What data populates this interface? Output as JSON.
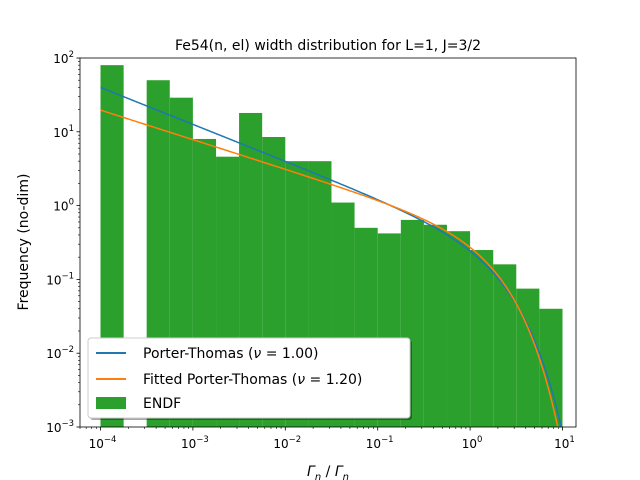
{
  "chart_data": {
    "type": "bar",
    "title": "Fe54(n, el) width distribution for L=1, J=3/2",
    "xlabel_base": "Γ",
    "xlabel_sub": "n",
    "xlabel_bar": "Γ",
    "xlabel_bar_sub": "n",
    "ylabel": "Frequency (no-dim)",
    "xscale": "log",
    "yscale": "log",
    "xlim": [
      6e-05,
      14
    ],
    "ylim": [
      0.001,
      100
    ],
    "x_ticks": [
      {
        "value": 0.0001,
        "base": "10",
        "exp": "−4"
      },
      {
        "value": 0.001,
        "base": "10",
        "exp": "−3"
      },
      {
        "value": 0.01,
        "base": "10",
        "exp": "−2"
      },
      {
        "value": 0.1,
        "base": "10",
        "exp": "−1"
      },
      {
        "value": 1,
        "base": "10",
        "exp": "0"
      },
      {
        "value": 10,
        "base": "10",
        "exp": "1"
      }
    ],
    "y_ticks": [
      {
        "value": 0.001,
        "base": "10",
        "exp": "−3"
      },
      {
        "value": 0.01,
        "base": "10",
        "exp": "−2"
      },
      {
        "value": 0.1,
        "base": "10",
        "exp": "−1"
      },
      {
        "value": 1,
        "base": "10",
        "exp": "0"
      },
      {
        "value": 10,
        "base": "10",
        "exp": "1"
      },
      {
        "value": 100,
        "base": "10",
        "exp": "2"
      }
    ],
    "histogram": {
      "name": "ENDF",
      "color": "#2ca02c",
      "bins": [
        {
          "x0": 0.0001,
          "x1": 0.000178,
          "value": 80
        },
        {
          "x0": 0.000178,
          "x1": 0.000316,
          "value": 0.001
        },
        {
          "x0": 0.000316,
          "x1": 0.000562,
          "value": 50
        },
        {
          "x0": 0.000562,
          "x1": 0.001,
          "value": 29
        },
        {
          "x0": 0.001,
          "x1": 0.00178,
          "value": 8
        },
        {
          "x0": 0.00178,
          "x1": 0.00316,
          "value": 4.6
        },
        {
          "x0": 0.00316,
          "x1": 0.00562,
          "value": 18
        },
        {
          "x0": 0.00562,
          "x1": 0.01,
          "value": 8.5
        },
        {
          "x0": 0.01,
          "x1": 0.0178,
          "value": 4
        },
        {
          "x0": 0.0178,
          "x1": 0.0316,
          "value": 4
        },
        {
          "x0": 0.0316,
          "x1": 0.0562,
          "value": 1.1
        },
        {
          "x0": 0.0562,
          "x1": 0.1,
          "value": 0.5
        },
        {
          "x0": 0.1,
          "x1": 0.178,
          "value": 0.42
        },
        {
          "x0": 0.178,
          "x1": 0.316,
          "value": 0.64
        },
        {
          "x0": 0.316,
          "x1": 0.562,
          "value": 0.55
        },
        {
          "x0": 0.562,
          "x1": 1,
          "value": 0.45
        },
        {
          "x0": 1,
          "x1": 1.78,
          "value": 0.25
        },
        {
          "x0": 1.78,
          "x1": 3.16,
          "value": 0.16
        },
        {
          "x0": 3.16,
          "x1": 5.62,
          "value": 0.075
        },
        {
          "x0": 5.62,
          "x1": 10,
          "value": 0.04
        }
      ]
    },
    "series": [
      {
        "name": "Porter-Thomas",
        "legend_prefix": "Porter-Thomas (",
        "legend_nu": "1.00",
        "nu": 1.0,
        "color": "#1f77b4",
        "x_range": [
          0.0001,
          10
        ]
      },
      {
        "name": "Fitted Porter-Thomas",
        "legend_prefix": "Fitted Porter-Thomas (",
        "legend_nu": "1.20",
        "nu": 1.2,
        "color": "#ff7f0e",
        "x_range": [
          0.0001,
          10
        ]
      }
    ],
    "legend": {
      "placement": "lower-left",
      "nu_symbol": "ν",
      "equals": " = ",
      "close": ")",
      "hist_label": "ENDF"
    },
    "grid": false
  }
}
